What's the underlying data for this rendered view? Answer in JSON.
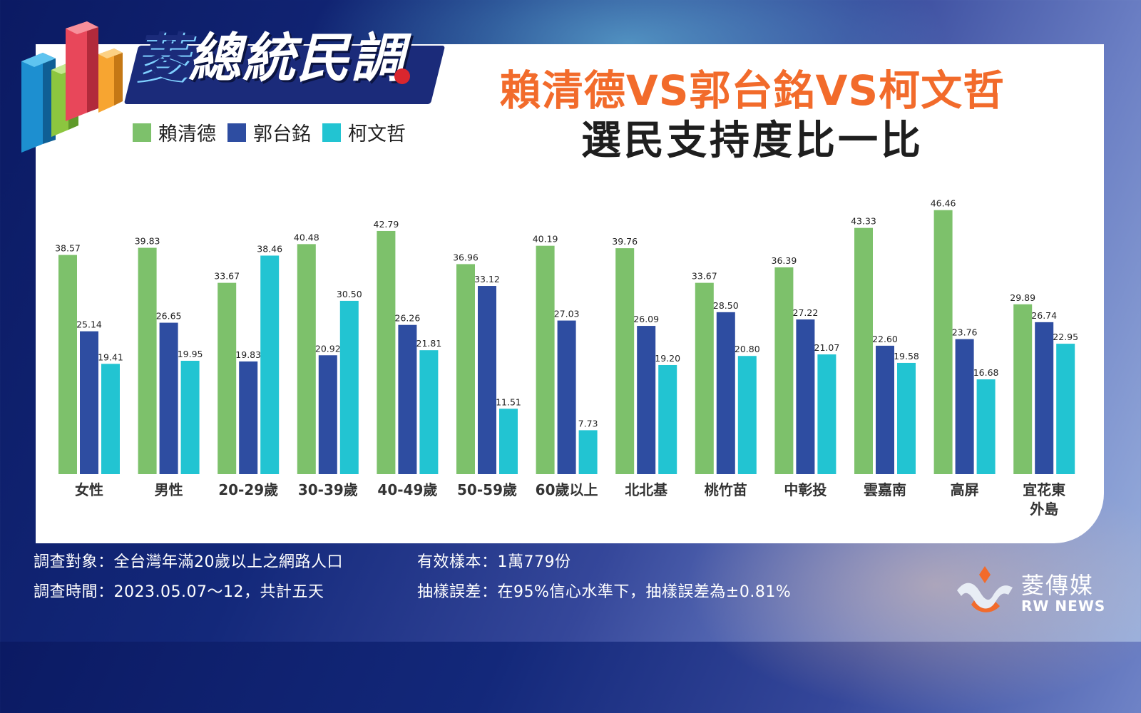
{
  "logo": {
    "text_first": "菱",
    "text_rest": "總統民調"
  },
  "title": {
    "line1": "賴清德VS郭台銘VS柯文哲",
    "line2": "選民支持度比一比"
  },
  "colors": {
    "series1": "#7dc16b",
    "series2": "#2e4da1",
    "series3": "#22c4d2",
    "title_accent": "#f26b2b"
  },
  "chart_data": {
    "type": "bar",
    "categories": [
      "女性",
      "男性",
      "20-29歲",
      "30-39歲",
      "40-49歲",
      "50-59歲",
      "60歲以上",
      "北北基",
      "桃竹苗",
      "中彰投",
      "雲嘉南",
      "高屏",
      "宜花東外島"
    ],
    "category_lines": [
      [
        "女性"
      ],
      [
        "男性"
      ],
      [
        "20-29歲"
      ],
      [
        "30-39歲"
      ],
      [
        "40-49歲"
      ],
      [
        "50-59歲"
      ],
      [
        "60歲以上"
      ],
      [
        "北北基"
      ],
      [
        "桃竹苗"
      ],
      [
        "中彰投"
      ],
      [
        "雲嘉南"
      ],
      [
        "高屏"
      ],
      [
        "宜花東",
        "外島"
      ]
    ],
    "series": [
      {
        "name": "賴清德",
        "values": [
          38.57,
          39.83,
          33.67,
          40.48,
          42.79,
          36.96,
          40.19,
          39.76,
          33.67,
          36.39,
          43.33,
          46.46,
          29.89
        ]
      },
      {
        "name": "郭台銘",
        "values": [
          25.14,
          26.65,
          19.83,
          20.92,
          26.26,
          33.12,
          27.03,
          26.09,
          28.5,
          27.22,
          22.6,
          23.76,
          26.74
        ]
      },
      {
        "name": "柯文哲",
        "values": [
          19.41,
          19.95,
          38.46,
          30.5,
          21.81,
          11.51,
          7.73,
          19.2,
          20.8,
          21.07,
          19.58,
          16.68,
          22.95
        ]
      }
    ],
    "value_labels": [
      [
        "38.57",
        "39.83",
        "33.67",
        "40.48",
        "42.79",
        "36.96",
        "40.19",
        "39.76",
        "33.67",
        "36.39",
        "43.33",
        "46.46",
        "29.89"
      ],
      [
        "25.14",
        "26.65",
        "19.83",
        "20.92",
        "26.26",
        "33.12",
        "27.03",
        "26.09",
        "28.50",
        "27.22",
        "22.60",
        "23.76",
        "26.74"
      ],
      [
        "19.41",
        "19.95",
        "38.46",
        "30.50",
        "21.81",
        "11.51",
        "7.73",
        "19.20",
        "20.80",
        "21.07",
        "19.58",
        "16.68",
        "22.95"
      ]
    ],
    "ylim": [
      0,
      50
    ],
    "grid": false,
    "legend_position": "top-left"
  },
  "footer": {
    "subject": "調查對象：全台灣年滿20歲以上之網路人口",
    "period": "調查時間：2023.05.07～12，共計五天",
    "sample": "有效樣本：1萬779份",
    "error": "抽樣誤差：在95%信心水準下，抽樣誤差為±0.81%"
  },
  "brand": {
    "cn": "菱傳媒",
    "en": "RW NEWS"
  }
}
